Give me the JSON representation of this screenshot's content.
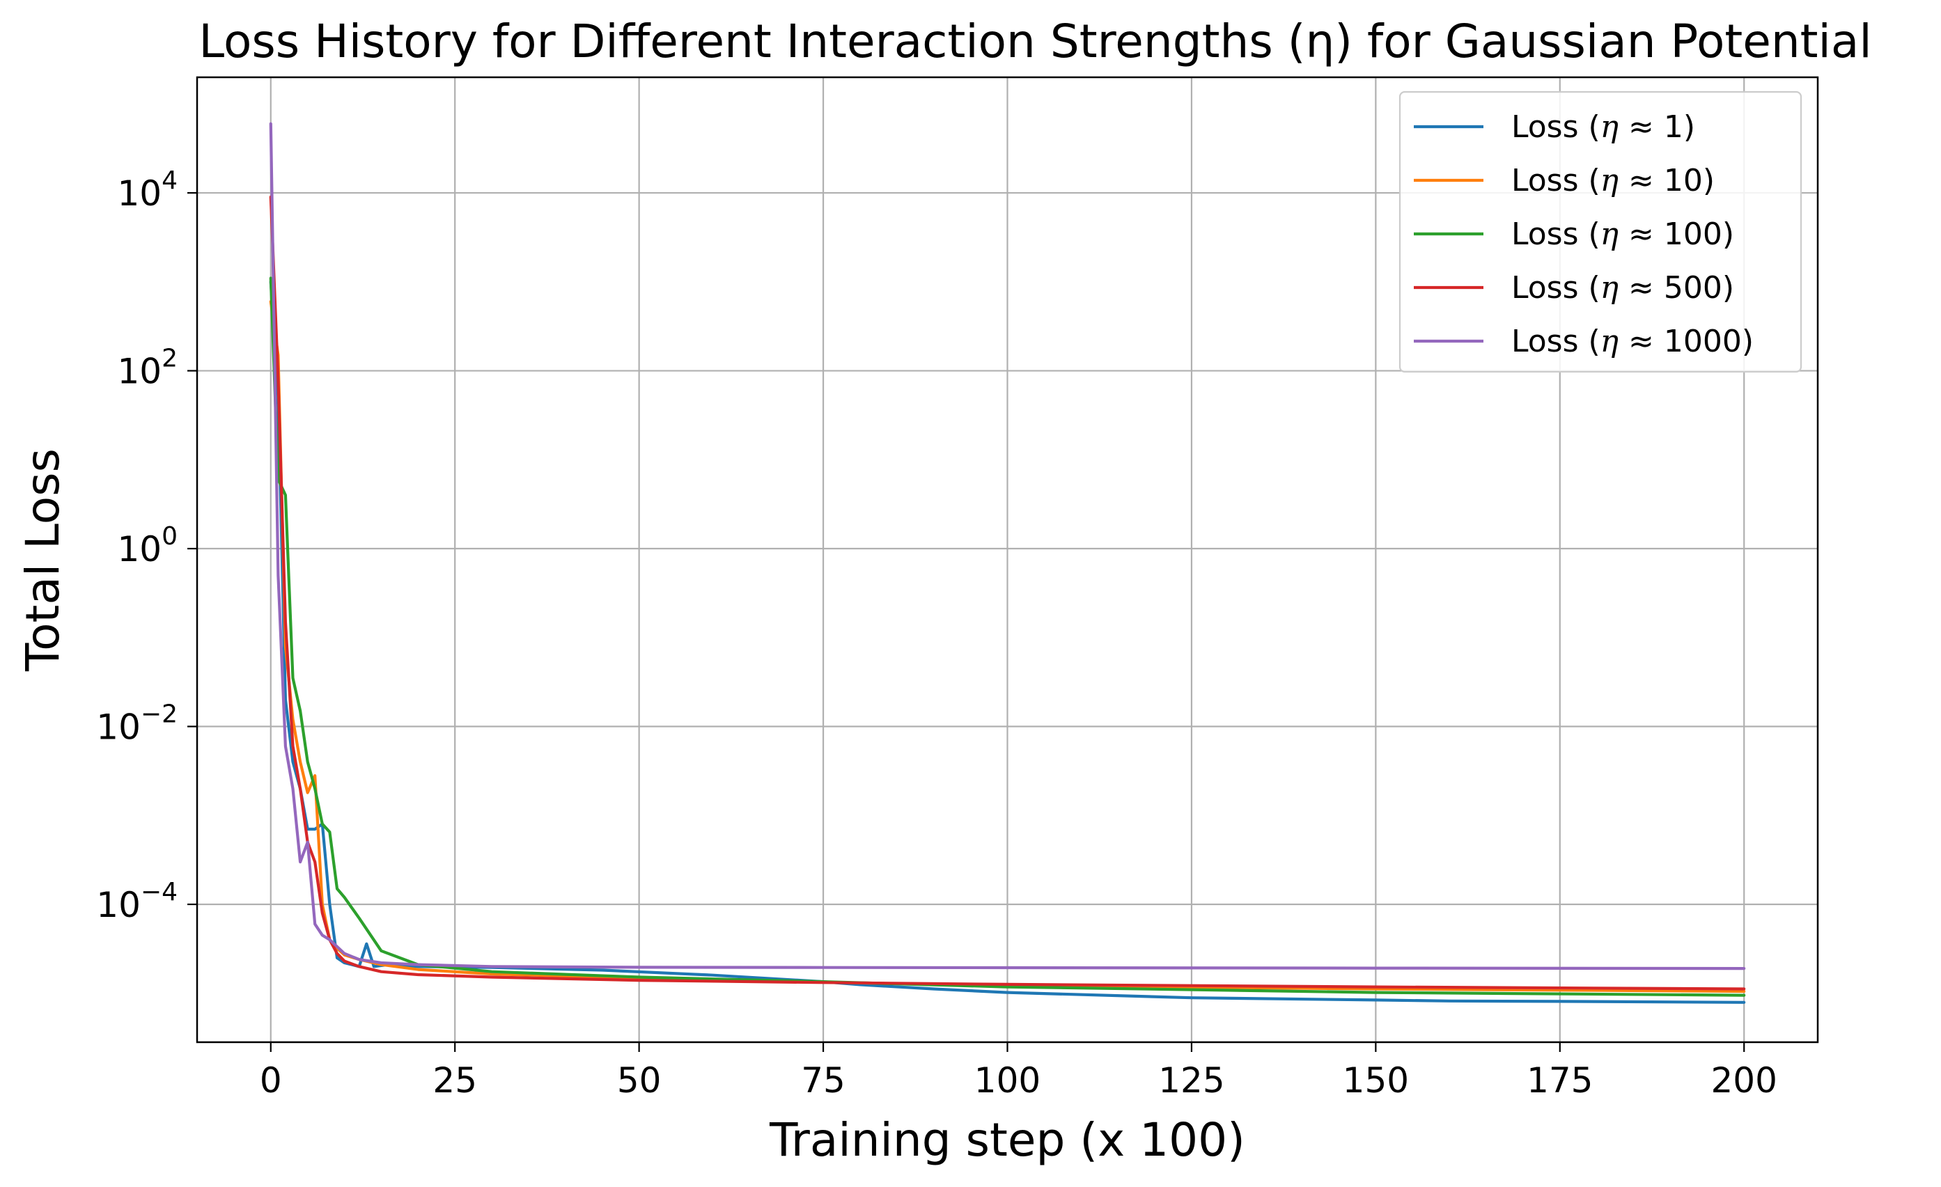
{
  "chart_data": {
    "type": "line",
    "title": "Loss History for Different Interaction Strengths (η) for Gaussian Potential",
    "xlabel": "Training step (x 100)",
    "ylabel": "Total Loss",
    "xlim": [
      -10,
      210
    ],
    "ylim_log10": [
      -5.55,
      5.3
    ],
    "yscale": "log",
    "grid": true,
    "legend_position": "upper right",
    "x_ticks": [
      {
        "value": 0,
        "label": "0"
      },
      {
        "value": 25,
        "label": "25"
      },
      {
        "value": 50,
        "label": "50"
      },
      {
        "value": 75,
        "label": "75"
      },
      {
        "value": 100,
        "label": "100"
      },
      {
        "value": 125,
        "label": "125"
      },
      {
        "value": 150,
        "label": "150"
      },
      {
        "value": 175,
        "label": "175"
      },
      {
        "value": 200,
        "label": "200"
      }
    ],
    "y_ticks": [
      {
        "value_log10": 4,
        "base": "10",
        "exponent": "4"
      },
      {
        "value_log10": 2,
        "base": "10",
        "exponent": "2"
      },
      {
        "value_log10": 0,
        "base": "10",
        "exponent": "0"
      },
      {
        "value_log10": -2,
        "base": "10",
        "exponent": "−2"
      },
      {
        "value_log10": -4,
        "base": "10",
        "exponent": "−4"
      }
    ],
    "series": [
      {
        "name": "Loss (η ≈ 1)",
        "label_prefix": "Loss (",
        "label_symbol": "η",
        "label_suffix": " ≈ 1)",
        "color": "#1f77b4",
        "x": [
          0,
          1,
          2,
          3,
          4,
          5,
          6,
          7,
          8,
          9,
          10,
          11,
          12,
          13,
          14,
          16,
          20,
          30,
          45,
          60,
          75,
          80,
          90,
          100,
          125,
          150,
          160,
          175,
          200
        ],
        "y": [
          1000,
          50,
          0.02,
          0.004,
          0.002,
          0.0007,
          0.0007,
          0.0008,
          0.0001,
          2.5e-05,
          2.2e-05,
          2.1e-05,
          2e-05,
          3.6e-05,
          2e-05,
          2.1e-05,
          2e-05,
          1.95e-05,
          1.82e-05,
          1.6e-05,
          1.35e-05,
          1.25e-05,
          1.12e-05,
          1.02e-05,
          8.9e-06,
          8.4e-06,
          8.2e-06,
          8.1e-06,
          7.9e-06
        ]
      },
      {
        "name": "Loss (η ≈ 10)",
        "label_prefix": "Loss (",
        "label_symbol": "η",
        "label_suffix": " ≈ 10)",
        "color": "#ff7f0e",
        "x": [
          0,
          1,
          2,
          3,
          4,
          5,
          6,
          7,
          8,
          9,
          10,
          12,
          15,
          20,
          30,
          50,
          75,
          100,
          150,
          200
        ],
        "y": [
          600,
          150,
          0.08,
          0.012,
          0.004,
          0.0018,
          0.0028,
          0.0001,
          4e-05,
          3.2e-05,
          2.7e-05,
          2.4e-05,
          2.1e-05,
          1.85e-05,
          1.65e-05,
          1.48e-05,
          1.33e-05,
          1.22e-05,
          1.12e-05,
          1.05e-05
        ]
      },
      {
        "name": "Loss (η ≈ 100)",
        "label_prefix": "Loss (",
        "label_symbol": "η",
        "label_suffix": " ≈ 100)",
        "color": "#2ca02c",
        "x": [
          0,
          1,
          2,
          3,
          4,
          5,
          6,
          7,
          8,
          9,
          10,
          12,
          15,
          20,
          30,
          50,
          75,
          100,
          150,
          200
        ],
        "y": [
          1100,
          6,
          4,
          0.035,
          0.015,
          0.004,
          0.002,
          0.0008,
          0.00065,
          0.00015,
          0.00012,
          7e-05,
          3e-05,
          2.1e-05,
          1.75e-05,
          1.52e-05,
          1.35e-05,
          1.18e-05,
          1.02e-05,
          9.5e-06
        ]
      },
      {
        "name": "Loss (η ≈ 500)",
        "label_prefix": "Loss (",
        "label_symbol": "η",
        "label_suffix": " ≈ 500)",
        "color": "#d62728",
        "x": [
          0,
          1,
          2,
          3,
          4,
          5,
          6,
          7,
          8,
          9,
          10,
          12,
          15,
          20,
          30,
          50,
          75,
          100,
          150,
          200
        ],
        "y": [
          9000,
          80,
          0.15,
          0.006,
          0.002,
          0.0005,
          0.0003,
          8e-05,
          4e-05,
          2.8e-05,
          2.3e-05,
          2e-05,
          1.75e-05,
          1.62e-05,
          1.52e-05,
          1.4e-05,
          1.32e-05,
          1.26e-05,
          1.18e-05,
          1.12e-05
        ]
      },
      {
        "name": "Loss (η ≈ 1000)",
        "label_prefix": "Loss (",
        "label_symbol": "η",
        "label_suffix": " ≈ 1000)",
        "color": "#9467bd",
        "x": [
          0,
          1,
          2,
          3,
          4,
          5,
          6,
          7,
          8,
          10,
          12,
          15,
          20,
          30,
          50,
          75,
          100,
          150,
          200
        ],
        "y": [
          60000,
          0.5,
          0.006,
          0.002,
          0.0003,
          0.0005,
          6e-05,
          4.5e-05,
          4e-05,
          2.8e-05,
          2.4e-05,
          2.2e-05,
          2.1e-05,
          2e-05,
          1.96e-05,
          1.95e-05,
          1.94e-05,
          1.92e-05,
          1.9e-05
        ]
      }
    ]
  }
}
